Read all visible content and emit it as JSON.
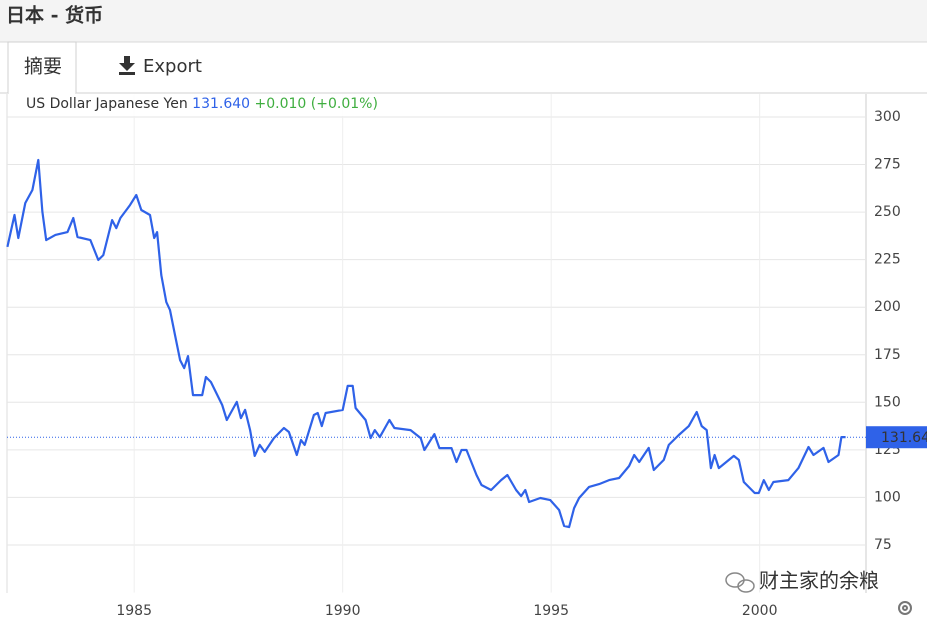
{
  "header": {
    "title": "日本 - 货币"
  },
  "tabs": [
    "摘要",
    "Export"
  ],
  "watermark": "财主家的余粮",
  "chart_data": {
    "type": "line",
    "quote": "131.640",
    "change": "+0.010 (+0.01%)",
    "last_price": 131.64,
    "last_price_label": "131.64",
    "x": [
      1981.96,
      1982.13,
      1982.22,
      1982.39,
      1982.56,
      1982.7,
      1982.8,
      1982.89,
      1983.11,
      1983.4,
      1983.54,
      1983.64,
      1983.95,
      1984.14,
      1984.26,
      1984.47,
      1984.57,
      1984.67,
      1984.9,
      1985.05,
      1985.17,
      1985.38,
      1985.48,
      1985.55,
      1985.65,
      1985.77,
      1985.86,
      1985.98,
      1986.1,
      1986.2,
      1986.29,
      1986.41,
      1986.63,
      1986.72,
      1986.84,
      1987.11,
      1987.22,
      1987.46,
      1987.56,
      1987.66,
      1987.78,
      1987.89,
      1988.01,
      1988.13,
      1988.35,
      1988.59,
      1988.71,
      1988.9,
      1989.0,
      1989.09,
      1989.31,
      1989.4,
      1989.5,
      1989.59,
      1990.0,
      1990.12,
      1990.24,
      1990.31,
      1990.55,
      1990.67,
      1990.77,
      1990.89,
      1991.12,
      1991.24,
      1991.63,
      1991.87,
      1991.96,
      1992.2,
      1992.32,
      1992.61,
      1992.73,
      1992.85,
      1992.97,
      1993.21,
      1993.33,
      1993.56,
      1993.8,
      1993.95,
      1994.16,
      1994.28,
      1994.38,
      1994.47,
      1994.74,
      1994.98,
      1995.19,
      1995.31,
      1995.43,
      1995.55,
      1995.67,
      1995.91,
      1996.15,
      1996.39,
      1996.63,
      1996.87,
      1996.99,
      1997.11,
      1997.34,
      1997.46,
      1997.7,
      1997.82,
      1998.06,
      1998.3,
      1998.49,
      1998.61,
      1998.73,
      1998.83,
      1998.92,
      1999.02,
      1999.38,
      1999.5,
      1999.62,
      1999.88,
      1999.98,
      2000.1,
      2000.22,
      2000.33,
      2000.69,
      2000.93,
      2001.17,
      2001.29,
      2001.53,
      2001.65,
      2001.89,
      2001.96,
      2002.06
    ],
    "series": [
      {
        "name": "US Dollar Japanese Yen",
        "color": "#2f62e8",
        "values": [
          231.7,
          248.5,
          236.4,
          254.8,
          261.6,
          277.4,
          250.1,
          235.3,
          238.0,
          239.5,
          246.9,
          236.9,
          235.3,
          224.8,
          227.4,
          245.8,
          241.6,
          246.9,
          253.7,
          259.0,
          251.1,
          248.5,
          236.4,
          239.5,
          216.9,
          202.7,
          198.5,
          185.4,
          172.2,
          168.0,
          174.3,
          153.8,
          153.8,
          163.3,
          160.7,
          148.6,
          140.7,
          150.2,
          141.7,
          146.0,
          135.4,
          121.8,
          127.6,
          123.9,
          131.2,
          136.5,
          134.4,
          122.3,
          130.2,
          127.6,
          143.3,
          144.4,
          137.5,
          144.4,
          146.0,
          158.6,
          158.6,
          147.0,
          140.7,
          131.2,
          135.4,
          131.7,
          140.7,
          136.5,
          135.4,
          131.2,
          124.9,
          133.3,
          125.9,
          125.9,
          118.6,
          124.9,
          124.9,
          111.8,
          106.5,
          103.9,
          109.1,
          111.8,
          103.9,
          100.7,
          103.9,
          97.6,
          99.7,
          98.6,
          93.4,
          85.0,
          84.4,
          94.4,
          99.7,
          105.5,
          107.0,
          109.1,
          110.2,
          116.5,
          122.3,
          118.6,
          126.0,
          114.4,
          119.7,
          127.6,
          132.8,
          137.5,
          144.9,
          137.5,
          135.4,
          115.4,
          122.3,
          115.4,
          121.8,
          119.7,
          108.1,
          102.3,
          102.3,
          109.1,
          103.9,
          108.1,
          109.1,
          115.4,
          126.5,
          122.3,
          126.0,
          118.6,
          122.3,
          131.7,
          131.7
        ]
      }
    ],
    "xlim": [
      1981.95,
      2002.55
    ],
    "ylim": [
      50,
      312
    ],
    "xticks": [
      1985,
      1990,
      1995,
      2000
    ],
    "yticks": [
      75,
      100,
      125,
      150,
      175,
      200,
      225,
      250,
      275,
      300
    ],
    "grid": true
  }
}
